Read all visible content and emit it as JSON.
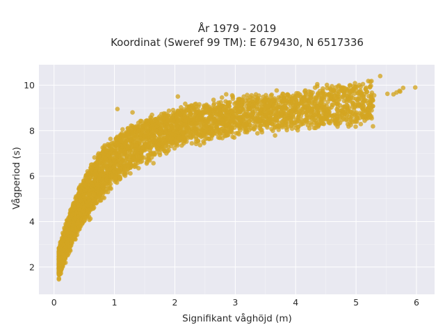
{
  "chart_data": {
    "type": "scatter",
    "title": [
      "År 1979 - 2019",
      "Koordinat (Sweref 99 TM): E 679430, N 6517336"
    ],
    "xlabel": "Signifikant våghöjd (m)",
    "ylabel": "Vågperiod (s)",
    "xlim": [
      -0.25,
      6.3
    ],
    "ylim": [
      0.8,
      10.9
    ],
    "xticks": [
      0,
      1,
      2,
      3,
      4,
      5,
      6
    ],
    "yticks": [
      2,
      4,
      6,
      8,
      10
    ],
    "grid": true,
    "legend": "none",
    "colors": {
      "marker": "#D4A521",
      "plot_bg": "#E9E9F1",
      "grid": "#FFFFFF"
    },
    "outliers": [
      [
        5.4,
        10.4
      ],
      [
        5.72,
        9.75
      ],
      [
        5.78,
        9.88
      ],
      [
        5.62,
        9.6
      ],
      [
        5.67,
        9.68
      ],
      [
        5.73,
        9.72
      ],
      [
        5.52,
        9.62
      ],
      [
        5.98,
        9.9
      ],
      [
        5.3,
        9.55
      ],
      [
        5.25,
        9.48
      ],
      [
        5.1,
        9.2
      ],
      [
        5.05,
        9.15
      ],
      [
        4.9,
        9.3
      ],
      [
        5.0,
        9.4
      ],
      [
        4.85,
        9.5
      ],
      [
        4.7,
        9.2
      ],
      [
        4.65,
        9.55
      ],
      [
        2.85,
        9.6
      ],
      [
        2.95,
        9.55
      ],
      [
        1.05,
        8.95
      ],
      [
        2.05,
        9.5
      ],
      [
        3.05,
        9.38
      ],
      [
        1.3,
        8.8
      ],
      [
        3.3,
        9.15
      ],
      [
        2.6,
        8.6
      ]
    ]
  }
}
